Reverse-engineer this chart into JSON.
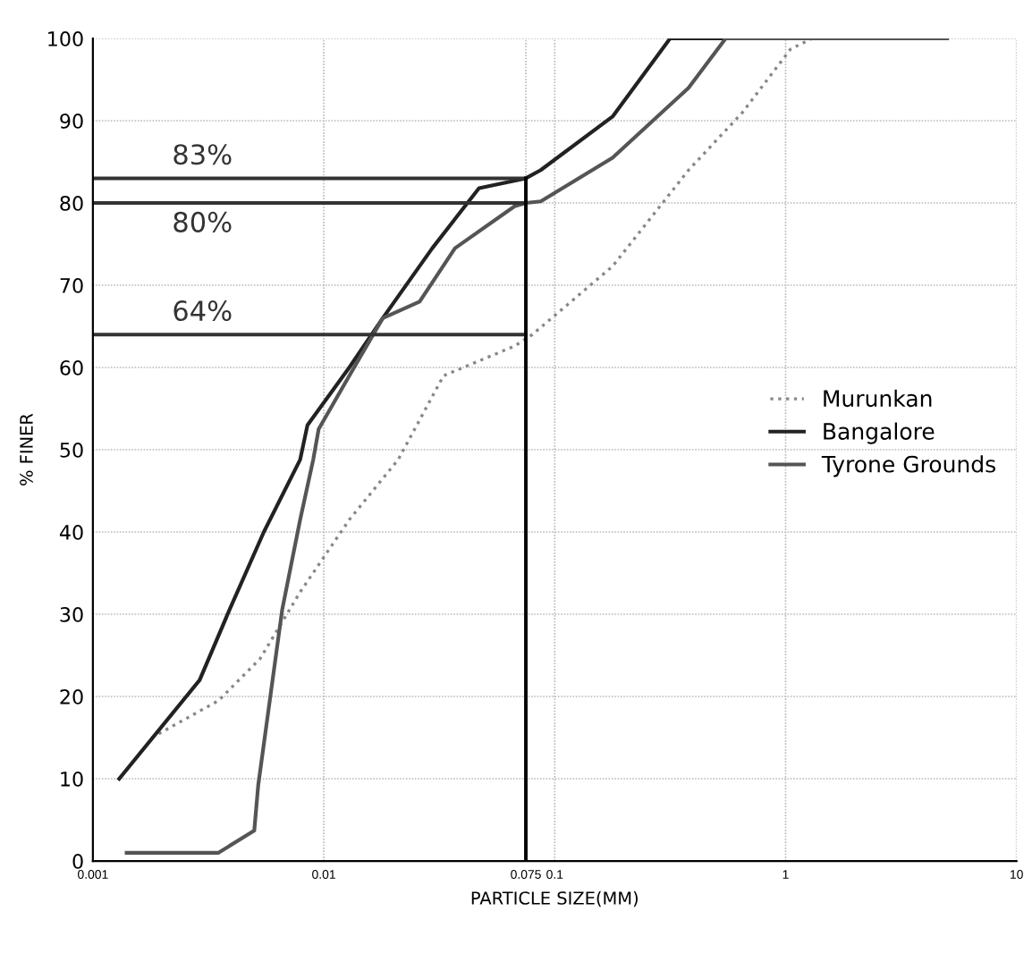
{
  "chart_data": {
    "type": "line",
    "xlabel": "PARTICLE SIZE(MM)",
    "ylabel": "% FINER",
    "log": "x",
    "xlim": [
      0.001,
      10
    ],
    "xticks": [
      0.001,
      0.01,
      {
        "value": 0.075,
        "label": "0.075"
      },
      0.1,
      1,
      {
        "value": 10,
        "label": "10"
      }
    ],
    "ylim": [
      0,
      100
    ],
    "yticks": [
      0,
      10,
      20,
      30,
      40,
      50,
      60,
      70,
      80,
      90,
      100
    ],
    "grid": true,
    "legend": "right",
    "marker": "none",
    "series": [
      {
        "name": "Murunkan",
        "color": "#888888",
        "line_style": "dotted",
        "x": [
          0.0018,
          0.0035,
          0.0053,
          0.0079,
          0.0129,
          0.021,
          0.033,
          0.067,
          0.08,
          0.178,
          0.38,
          0.65,
          1.05,
          1.3,
          5
        ],
        "values": [
          15,
          19.5,
          24.6,
          32.7,
          41.5,
          48.8,
          59,
          62.6,
          64,
          72.3,
          84,
          91,
          98.7,
          100,
          100
        ]
      },
      {
        "name": "Bangalore",
        "color": "#222222",
        "line_style": "solid",
        "x": [
          0.0013,
          0.0029,
          0.0039,
          0.0055,
          0.0079,
          0.0085,
          0.0129,
          0.018,
          0.0295,
          0.047,
          0.075,
          0.087,
          0.178,
          0.316,
          5
        ],
        "values": [
          10,
          22,
          30.5,
          40,
          48.8,
          53,
          60,
          66,
          74.5,
          81.8,
          83,
          84,
          90.5,
          100,
          100
        ]
      },
      {
        "name": "Tyrone Grounds",
        "color": "#555555",
        "line_style": "solid",
        "x": [
          0.0014,
          0.0035,
          0.005,
          0.0052,
          0.0066,
          0.0079,
          0.009,
          0.0095,
          0.0129,
          0.018,
          0.026,
          0.037,
          0.067,
          0.075,
          0.087,
          0.178,
          0.38,
          0.55,
          5
        ],
        "values": [
          1,
          1,
          3.7,
          9.2,
          30.5,
          41.5,
          48.8,
          52.5,
          59,
          66,
          68,
          74.5,
          79.6,
          80,
          80.2,
          85.5,
          94,
          100,
          100
        ]
      }
    ],
    "ref_lines": [
      {
        "axis": "y",
        "value": 83,
        "label": "83%",
        "color": "#333333"
      },
      {
        "axis": "y",
        "value": 80,
        "label": "80%",
        "color": "#333333"
      },
      {
        "axis": "y",
        "value": 64,
        "label": "64%",
        "color": "#333333"
      },
      {
        "axis": "x",
        "value": 0.075,
        "color": "#000000"
      }
    ]
  }
}
